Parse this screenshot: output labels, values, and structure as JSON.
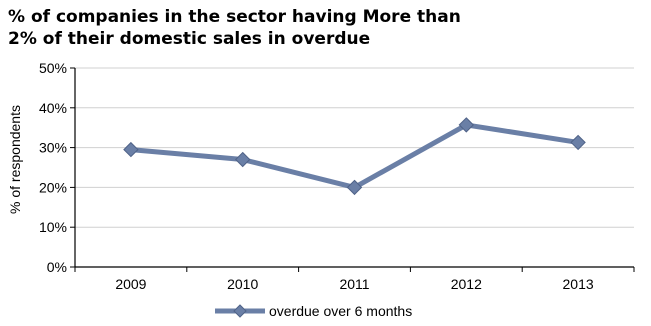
{
  "chart_data": {
    "type": "line",
    "title_lines": [
      "% of companies in the sector having More than",
      "2% of their domestic sales in overdue"
    ],
    "xlabel": "",
    "ylabel": "% of respondents",
    "categories": [
      "2009",
      "2010",
      "2011",
      "2012",
      "2013"
    ],
    "yticks": [
      "0%",
      "10%",
      "20%",
      "30%",
      "40%",
      "50%"
    ],
    "ylim": [
      0,
      50
    ],
    "grid": "horizontal",
    "legend_position": "bottom",
    "series": [
      {
        "name": "overdue over 6 months",
        "values": [
          29.5,
          27,
          20,
          35.7,
          31.3
        ],
        "color": "#6a7fa6",
        "marker": "diamond"
      }
    ]
  }
}
